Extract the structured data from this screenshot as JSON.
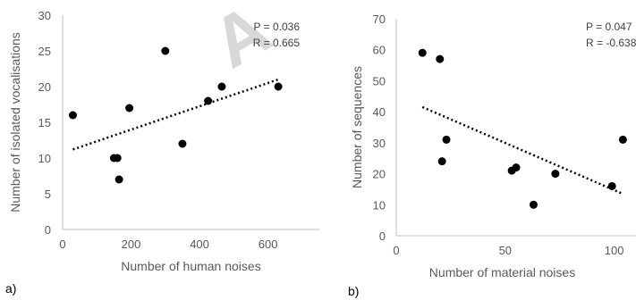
{
  "chart_data": [
    {
      "type": "scatter",
      "panel_label": "a)",
      "xlabel": "Number of human noises",
      "ylabel": "Number of isolated vocalisations",
      "xlim": [
        0,
        750
      ],
      "ylim": [
        0,
        30
      ],
      "xticks": [
        0,
        200,
        400,
        600
      ],
      "yticks": [
        0,
        5,
        10,
        15,
        20,
        25,
        30
      ],
      "annotations": [
        "P = 0.036",
        "R = 0.665"
      ],
      "trendline": {
        "style": "dotted",
        "x": [
          30,
          630
        ],
        "y": [
          11.2,
          21
        ]
      },
      "points": [
        {
          "x": 30,
          "y": 16
        },
        {
          "x": 150,
          "y": 10
        },
        {
          "x": 160,
          "y": 10
        },
        {
          "x": 165,
          "y": 7
        },
        {
          "x": 195,
          "y": 17
        },
        {
          "x": 300,
          "y": 25
        },
        {
          "x": 350,
          "y": 12
        },
        {
          "x": 425,
          "y": 18
        },
        {
          "x": 465,
          "y": 20
        },
        {
          "x": 630,
          "y": 20
        }
      ]
    },
    {
      "type": "scatter",
      "panel_label": "b)",
      "xlabel": "Number of material noises",
      "ylabel": "Number of sequences",
      "xlim": [
        0,
        110
      ],
      "ylim": [
        0,
        70
      ],
      "xticks": [
        0,
        50,
        100
      ],
      "yticks": [
        0,
        10,
        20,
        30,
        40,
        50,
        60,
        70
      ],
      "annotations": [
        "P = 0.047",
        "R = -0.638"
      ],
      "trendline": {
        "style": "dotted",
        "x": [
          12,
          104
        ],
        "y": [
          41.5,
          13.5
        ]
      },
      "points": [
        {
          "x": 12,
          "y": 59
        },
        {
          "x": 20,
          "y": 57
        },
        {
          "x": 21,
          "y": 24
        },
        {
          "x": 23,
          "y": 31
        },
        {
          "x": 53,
          "y": 21
        },
        {
          "x": 55,
          "y": 22
        },
        {
          "x": 63,
          "y": 10
        },
        {
          "x": 73,
          "y": 20
        },
        {
          "x": 99,
          "y": 16
        },
        {
          "x": 104,
          "y": 31
        }
      ]
    }
  ],
  "watermark_text": "A"
}
